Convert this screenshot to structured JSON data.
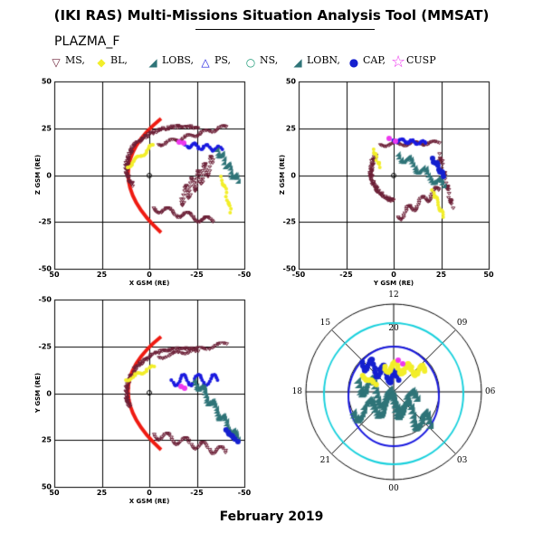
{
  "title": "(IKI RAS) Multi-Missions Situation Analysis Tool (MMSAT)",
  "mission": "PLAZMA_F",
  "date": "February 2019",
  "legend": [
    {
      "label": "MS,",
      "icon": "triangle-down-icon",
      "color": "#6b1f36"
    },
    {
      "label": "BL,",
      "icon": "diamond-icon",
      "color": "#f2ee2a"
    },
    {
      "label": "LOBS,",
      "icon": "triangle-right-icon",
      "color": "#2f7478"
    },
    {
      "label": "PS,",
      "icon": "triangle-up-icon",
      "color": "#1a1adf"
    },
    {
      "label": "NS,",
      "icon": "circle-icon",
      "color": "#1e9b78"
    },
    {
      "label": "LOBN,",
      "icon": "triangle-right-icon",
      "color": "#2f7478"
    },
    {
      "label": "CAP,",
      "icon": "filled-circle-icon",
      "color": "#1520cf"
    },
    {
      "label": "CUSP",
      "icon": "star-icon",
      "color": "#ee38ee"
    }
  ],
  "panels": {
    "xz": {
      "xlabel": "X GSM (RE)",
      "ylabel": "Z GSM (RE)",
      "xticks": [
        "50",
        "25",
        "0",
        "-25",
        "-50"
      ],
      "yticks": [
        "50",
        "25",
        "0",
        "-25",
        "-50"
      ]
    },
    "yz": {
      "xlabel": "Y GSM (RE)",
      "ylabel": "Z GSM (RE)",
      "xticks": [
        "-50",
        "-25",
        "0",
        "25",
        "50"
      ],
      "yticks": [
        "50",
        "25",
        "0",
        "-25",
        "-50"
      ]
    },
    "xy": {
      "xlabel": "X GSM (RE)",
      "ylabel": "Y GSM (RE)",
      "xticks": [
        "50",
        "25",
        "0",
        "-25",
        "-50"
      ],
      "yticks": [
        "-50",
        "-25",
        "0",
        "25",
        "50"
      ]
    },
    "polar": {
      "hour_labels": [
        "12",
        "09",
        "06",
        "03",
        "00",
        "21",
        "18",
        "15"
      ],
      "radial_label": "20"
    }
  }
}
